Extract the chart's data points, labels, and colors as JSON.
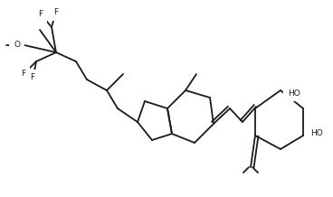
{
  "background_color": "#ffffff",
  "line_color": "#1a1a1a",
  "line_width": 1.3,
  "font_size": 6.5,
  "figsize": [
    3.68,
    2.18
  ],
  "dpi": 100,
  "xlim": [
    0,
    368
  ],
  "ylim": [
    0,
    218
  ]
}
